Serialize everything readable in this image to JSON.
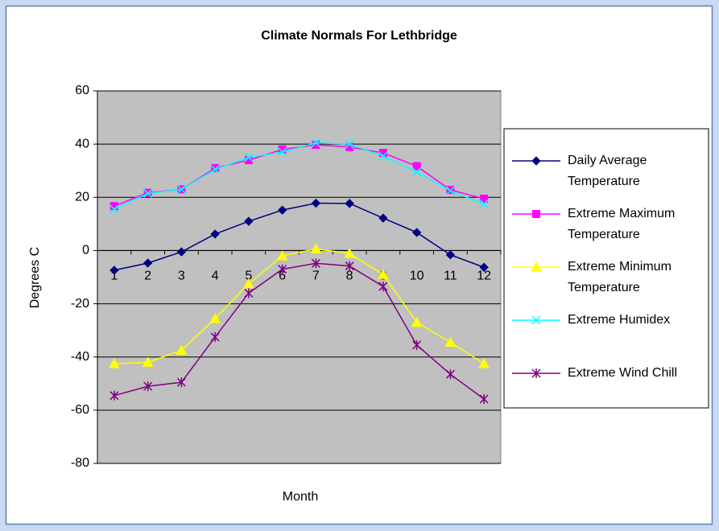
{
  "chart_data": {
    "type": "line",
    "title": "Climate Normals For Lethbridge",
    "xlabel": "Month",
    "ylabel": "Degrees C",
    "categories": [
      "1",
      "2",
      "3",
      "4",
      "5",
      "6",
      "7",
      "8",
      "9",
      "10",
      "11",
      "12"
    ],
    "ylim": [
      -80,
      60
    ],
    "yticks": [
      -80,
      -60,
      -40,
      -20,
      0,
      20,
      40,
      60
    ],
    "grid": true,
    "legend": "right",
    "series": [
      {
        "name": "Daily Average Temperature",
        "color": "#000080",
        "marker": "diamond",
        "values": [
          -7.4,
          -4.7,
          -0.5,
          6.2,
          11.0,
          15.2,
          17.8,
          17.7,
          12.2,
          6.8,
          -1.6,
          -6.3
        ]
      },
      {
        "name": "Extreme Maximum Temperature",
        "color": "#ff00ff",
        "marker": "square",
        "values": [
          16.7,
          21.7,
          23.0,
          31.0,
          34.0,
          38.0,
          39.7,
          38.9,
          36.7,
          31.7,
          22.8,
          19.5
        ]
      },
      {
        "name": "Extreme Minimum Temperature",
        "color": "#ffff00",
        "marker": "triangle",
        "values": [
          -42.5,
          -42.0,
          -37.5,
          -25.6,
          -12.5,
          -2.0,
          0.6,
          -1.1,
          -9.0,
          -27.0,
          -34.5,
          -42.5
        ]
      },
      {
        "name": "Extreme Humidex",
        "color": "#00ffff",
        "marker": "x",
        "values": [
          15.5,
          21.5,
          23.0,
          30.5,
          35.0,
          37.0,
          40.5,
          40.0,
          35.5,
          29.5,
          22.5,
          17.5
        ]
      },
      {
        "name": "Extreme Wind Chill",
        "color": "#800080",
        "marker": "star",
        "values": [
          -54.5,
          -51.0,
          -49.5,
          -32.5,
          -16.0,
          -7.0,
          -4.8,
          -5.8,
          -13.5,
          -35.5,
          -46.5,
          -55.8
        ]
      }
    ]
  }
}
